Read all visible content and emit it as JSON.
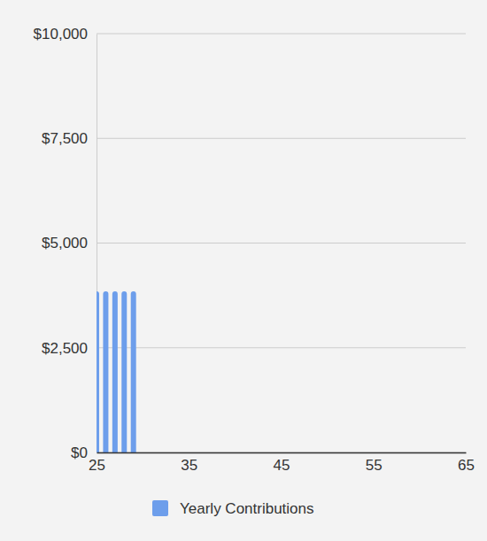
{
  "chart_data": {
    "type": "bar",
    "x": [
      25,
      26,
      27,
      28,
      29
    ],
    "series": [
      {
        "name": "Yearly Contributions",
        "color": "#6d9eeb",
        "values": [
          3850,
          3850,
          3850,
          3850,
          3850
        ]
      }
    ],
    "xlim": [
      25,
      65
    ],
    "xticks": [
      25,
      35,
      45,
      55,
      65
    ],
    "ylim": [
      0,
      10000
    ],
    "yticks": [
      {
        "value": 0,
        "label": "$0"
      },
      {
        "value": 2500,
        "label": "$2,500"
      },
      {
        "value": 5000,
        "label": "$5,000"
      },
      {
        "value": 7500,
        "label": "$7,500"
      },
      {
        "value": 10000,
        "label": "$10,000"
      }
    ],
    "grid": true,
    "legend": "bottom"
  }
}
